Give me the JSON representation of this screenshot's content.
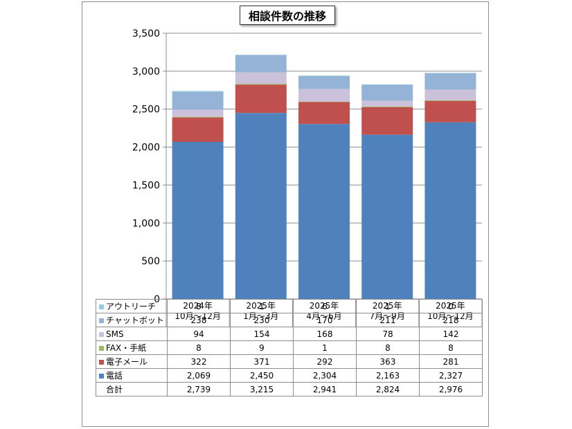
{
  "chart_data": {
    "type": "bar",
    "stacked": true,
    "title": "相談件数の推移",
    "categories": [
      [
        "2024年",
        "10月～12月"
      ],
      [
        "2025年",
        "1月～3月"
      ],
      [
        "2025年",
        "4月～6月"
      ],
      [
        "2025年",
        "7月～9月"
      ],
      [
        "2025年",
        "10月～12月"
      ]
    ],
    "ylim": [
      0,
      3500
    ],
    "yticks": [
      "0",
      "500",
      "1,000",
      "1,500",
      "2,000",
      "2,500",
      "3,000",
      "3,500"
    ],
    "ytick_values": [
      0,
      500,
      1000,
      1500,
      2000,
      2500,
      3000,
      3500
    ],
    "grid": true,
    "series": [
      {
        "name": "電話",
        "color": "#4F81BD",
        "values": [
          2069,
          2450,
          2304,
          2163,
          2327
        ],
        "labels": [
          "2,069",
          "2,450",
          "2,304",
          "2,163",
          "2,327"
        ]
      },
      {
        "name": "電子メール",
        "color": "#C0504D",
        "values": [
          322,
          371,
          292,
          363,
          281
        ],
        "labels": [
          "322",
          "371",
          "292",
          "363",
          "281"
        ]
      },
      {
        "name": "FAX・手紙",
        "color": "#9BBB59",
        "values": [
          8,
          9,
          1,
          8,
          8
        ],
        "labels": [
          "8",
          "9",
          "1",
          "8",
          "8"
        ]
      },
      {
        "name": "SMS",
        "color": "#CCC1DA",
        "values": [
          94,
          154,
          168,
          78,
          142
        ],
        "labels": [
          "94",
          "154",
          "168",
          "78",
          "142"
        ]
      },
      {
        "name": "チャットボット",
        "color": "#95B3D7",
        "values": [
          238,
          230,
          170,
          211,
          218
        ],
        "labels": [
          "238",
          "230",
          "170",
          "211",
          "218"
        ]
      },
      {
        "name": "アウトリーチ",
        "color": "#93CDDD",
        "values": [
          8,
          1,
          6,
          1,
          0
        ],
        "labels": [
          "8",
          "1",
          "6",
          "1",
          "0"
        ]
      }
    ],
    "table_row_order": [
      "アウトリーチ",
      "チャットボット",
      "SMS",
      "FAX・手紙",
      "電子メール",
      "電話"
    ],
    "totals_label": "合計",
    "totals": [
      "2,739",
      "3,215",
      "2,941",
      "2,824",
      "2,976"
    ]
  }
}
